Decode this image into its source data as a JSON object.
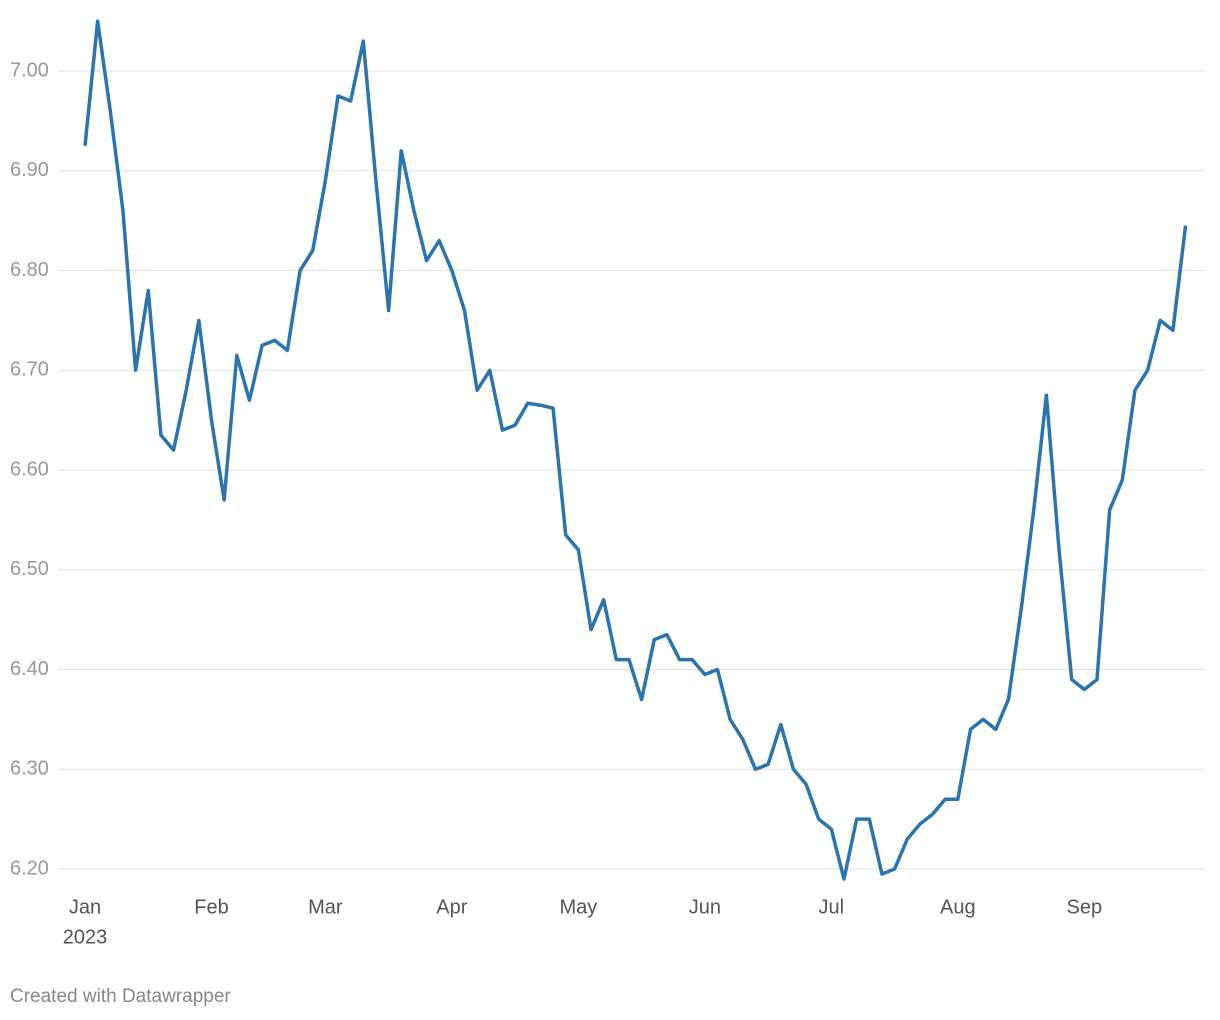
{
  "chart_data": {
    "type": "line",
    "categories": [
      "Jan",
      null,
      null,
      null,
      null,
      null,
      null,
      null,
      null,
      null,
      "Feb",
      null,
      null,
      null,
      null,
      null,
      null,
      null,
      null,
      "Mar",
      null,
      null,
      null,
      null,
      null,
      null,
      null,
      null,
      null,
      "Apr",
      null,
      null,
      null,
      null,
      null,
      null,
      null,
      null,
      null,
      "May",
      null,
      null,
      null,
      null,
      null,
      null,
      null,
      null,
      null,
      "Jun",
      null,
      null,
      null,
      null,
      null,
      null,
      null,
      null,
      null,
      "Jul",
      null,
      null,
      null,
      null,
      null,
      null,
      null,
      null,
      null,
      "Aug",
      null,
      null,
      null,
      null,
      null,
      null,
      null,
      null,
      null,
      "Sep",
      null,
      null,
      null,
      null,
      null,
      null,
      null,
      null
    ],
    "x_year_label": "2023",
    "values": [
      6.925,
      7.05,
      6.96,
      6.86,
      6.7,
      6.78,
      6.635,
      6.62,
      6.68,
      6.75,
      6.65,
      6.57,
      6.715,
      6.67,
      6.725,
      6.73,
      6.72,
      6.8,
      6.82,
      6.89,
      6.975,
      6.97,
      7.03,
      6.89,
      6.76,
      6.92,
      6.86,
      6.81,
      6.83,
      6.8,
      6.76,
      6.68,
      6.7,
      6.64,
      6.645,
      6.667,
      6.665,
      6.662,
      6.535,
      6.52,
      6.44,
      6.47,
      6.41,
      6.41,
      6.37,
      6.43,
      6.435,
      6.41,
      6.41,
      6.395,
      6.4,
      6.35,
      6.33,
      6.3,
      6.305,
      6.345,
      6.3,
      6.285,
      6.25,
      6.24,
      6.19,
      6.25,
      6.25,
      6.195,
      6.2,
      6.23,
      6.245,
      6.255,
      6.27,
      6.27,
      6.34,
      6.35,
      6.34,
      6.37,
      6.46,
      6.56,
      6.675,
      6.52,
      6.39,
      6.38,
      6.39,
      6.56,
      6.59,
      6.68,
      6.7,
      6.75,
      6.74,
      6.845
    ],
    "color": "#2a74b0",
    "ylim": [
      6.18,
      7.06
    ],
    "yticks": [
      {
        "value": 6.2,
        "label": "6.20"
      },
      {
        "value": 6.3,
        "label": "6.30"
      },
      {
        "value": 6.4,
        "label": "6.40"
      },
      {
        "value": 6.5,
        "label": "6.50"
      },
      {
        "value": 6.6,
        "label": "6.60"
      },
      {
        "value": 6.7,
        "label": "6.70"
      },
      {
        "value": 6.8,
        "label": "6.80"
      },
      {
        "value": 6.9,
        "label": "6.90"
      },
      {
        "value": 7.0,
        "label": "7.00"
      }
    ],
    "grid": true,
    "credit": "Created with Datawrapper"
  }
}
